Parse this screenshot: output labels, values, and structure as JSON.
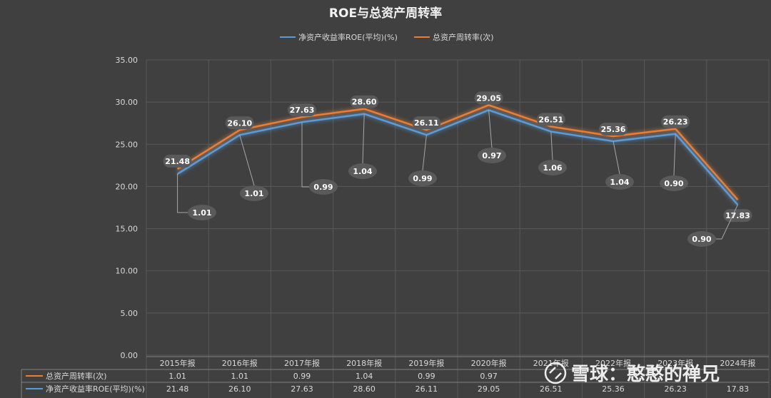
{
  "chart_data": {
    "type": "line",
    "title": "ROE与总资产周转率",
    "categories": [
      "2015年报",
      "2016年报",
      "2017年报",
      "2018年报",
      "2019年报",
      "2020年报",
      "2021年报",
      "2022年报",
      "2023年报",
      "2024年报"
    ],
    "y_ticks": [
      "0.00",
      "5.00",
      "10.00",
      "15.00",
      "20.00",
      "25.00",
      "30.00",
      "35.00"
    ],
    "ylim": [
      0,
      35
    ],
    "grid": true,
    "legend_position": "top",
    "series": [
      {
        "name": "净资产收益率ROE(平均)(%)",
        "color": "#5b9bd5",
        "values": [
          21.48,
          26.1,
          27.63,
          28.6,
          26.11,
          29.05,
          26.51,
          25.36,
          26.23,
          17.83
        ],
        "labels": [
          "21.48",
          "26.10",
          "27.63",
          "28.60",
          "26.11",
          "29.05",
          "26.51",
          "25.36",
          "26.23",
          "17.83"
        ]
      },
      {
        "name": "总资产周转率(次)",
        "color": "#ed7d31",
        "values": [
          1.01,
          1.01,
          0.99,
          1.04,
          0.99,
          0.97,
          1.06,
          1.04,
          0.9,
          0.9
        ],
        "labels": [
          "1.01",
          "1.01",
          "0.99",
          "1.04",
          "0.99",
          "0.97",
          "1.06",
          "1.04",
          "0.90",
          "0.90"
        ]
      }
    ],
    "table": {
      "rows": [
        {
          "name": "总资产周转率(次)",
          "color": "#ed7d31",
          "cells": [
            "1.01",
            "1.01",
            "0.99",
            "1.04",
            "0.99",
            "0.97",
            "",
            "",
            "",
            ""
          ]
        },
        {
          "name": "净资产收益率ROE(平均)(%)",
          "color": "#5b9bd5",
          "cells": [
            "21.48",
            "26.10",
            "27.63",
            "28.60",
            "26.11",
            "29.05",
            "26.51",
            "25.36",
            "26.23",
            "17.83"
          ]
        }
      ]
    }
  },
  "legend": {
    "items": [
      {
        "name": "净资产收益率ROE(平均)(%)",
        "color": "#5b9bd5"
      },
      {
        "name": "总资产周转率(次)",
        "color": "#ed7d31"
      }
    ]
  },
  "watermark": "雪球：憨憨的禅兄"
}
